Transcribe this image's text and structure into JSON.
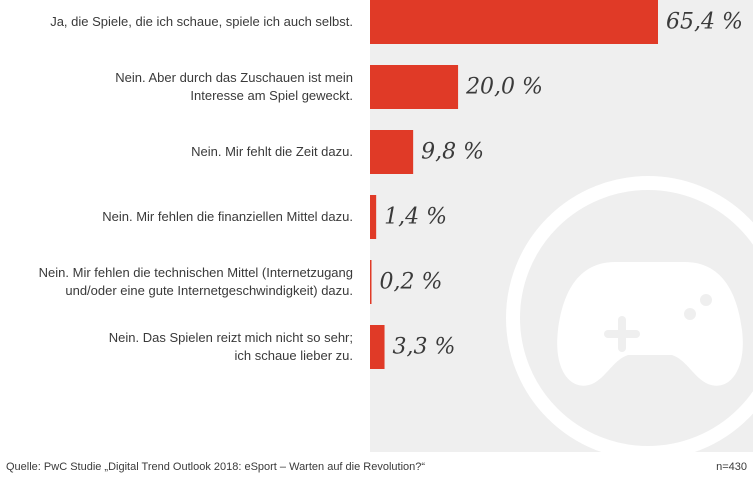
{
  "chart_data": {
    "type": "bar",
    "orientation": "horizontal",
    "categories": [
      "Ja, die Spiele, die ich schaue, spiele ich auch selbst.",
      "Nein. Aber durch das Zuschauen ist mein\nInteresse am Spiel geweckt.",
      "Nein. Mir fehlt die Zeit dazu.",
      "Nein. Mir fehlen die finanziellen Mittel dazu.",
      "Nein. Mir fehlen die technischen Mittel (Internetzugang\nund/oder eine gute Internetgeschwindigkeit) dazu.",
      "Nein. Das Spielen reizt mich nicht so sehr;\nich schaue lieber zu."
    ],
    "values": [
      65.4,
      20.0,
      9.8,
      1.4,
      0.2,
      3.3
    ],
    "value_labels": [
      "65,4 %",
      "20,0 %",
      "9,8 %",
      "1,4 %",
      "0,2 %",
      "3,3 %"
    ],
    "xlim": [
      0,
      100
    ],
    "grid": false,
    "bar_color": "#e03a27",
    "background_panel_color": "#efefef",
    "background_icon": "gamepad-icon"
  },
  "footer": {
    "source": "Quelle: PwC Studie „Digital Trend Outlook 2018: eSport – Warten auf die Revolution?“",
    "sample": "n=430"
  }
}
